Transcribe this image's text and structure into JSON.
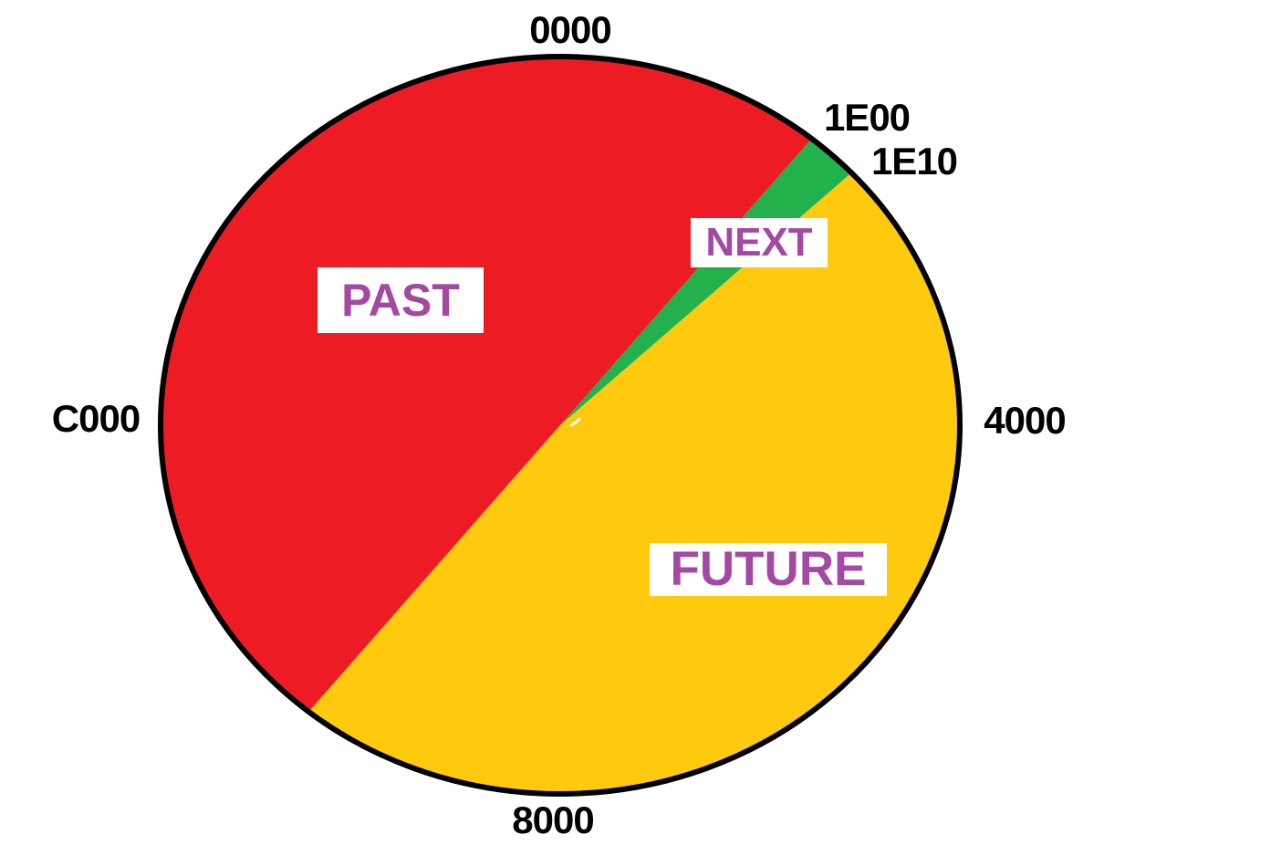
{
  "figure": {
    "background": "#FFFFFF",
    "outline_color": "#000000",
    "outline_width": 6,
    "tick_text_color": "#000000",
    "slice_label_text_color": "#A349A4",
    "slice_label_box_color": "#FFFFFF"
  },
  "chart_data": {
    "type": "pie",
    "title": "",
    "legend": "none",
    "slices": [
      {
        "name": "PAST",
        "color": "#ED1C24",
        "start_angle_deg": 219,
        "end_angle_deg": 399,
        "from_value": "1E00 - 8000",
        "to_value": "1E00"
      },
      {
        "name": "NEXT",
        "color": "#22B14C",
        "start_angle_deg": 39,
        "end_angle_deg": 46.8,
        "from_value": "1E00",
        "to_value": "1E10"
      },
      {
        "name": "FUTURE",
        "color": "#FFC90E",
        "start_angle_deg": 46.8,
        "end_angle_deg": 219,
        "from_value": "1E10",
        "to_value": "1E10 + 8000"
      }
    ],
    "ticks": [
      {
        "label": "0000",
        "angle_deg": 0
      },
      {
        "label": "1E00",
        "angle_deg": 39
      },
      {
        "label": "1E10",
        "angle_deg": 47
      },
      {
        "label": "4000",
        "angle_deg": 90
      },
      {
        "label": "8000",
        "angle_deg": 180
      },
      {
        "label": "C000",
        "angle_deg": 270
      }
    ]
  }
}
